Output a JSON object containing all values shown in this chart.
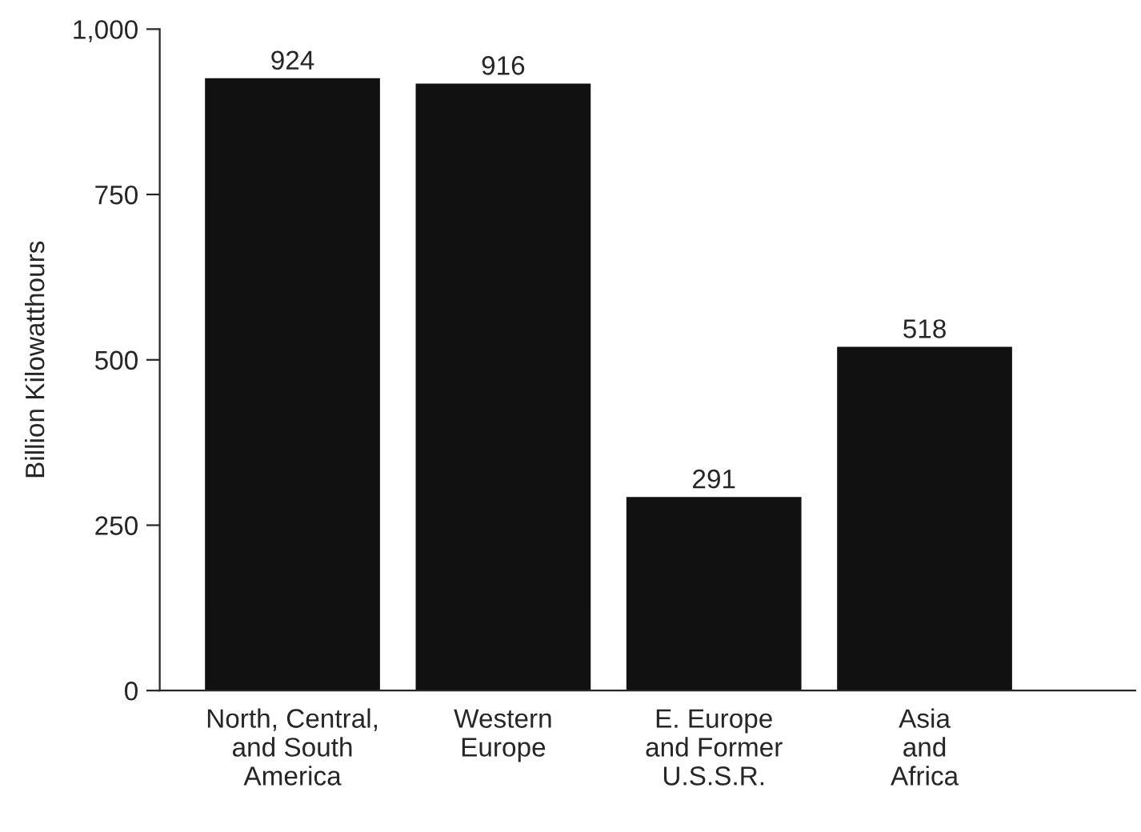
{
  "chart_data": {
    "type": "bar",
    "ylabel": "Billion Kilowatthours",
    "categories": [
      "North, Central,\nand South\nAmerica",
      "Western\nEurope",
      "E. Europe\nand Former\nU.S.S.R.",
      "Asia\nand\nAfrica"
    ],
    "values": [
      924,
      916,
      291,
      518
    ],
    "color": "#111111",
    "ylim": [
      0,
      1000
    ],
    "yticks": [
      0,
      250,
      500,
      750,
      {
        "value": 1000,
        "label": "1,000"
      }
    ],
    "data_labels": true,
    "grid": false,
    "legend": false
  }
}
